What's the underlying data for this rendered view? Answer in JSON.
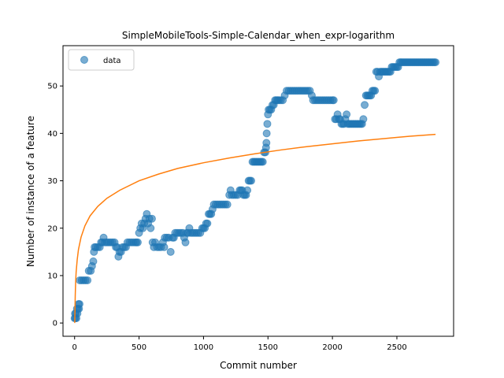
{
  "chart_data": {
    "type": "scatter",
    "title": "SimpleMobileTools-Simple-Calendar_when_expr-logarithm",
    "xlabel": "Commit number",
    "ylabel": "Number of instance of a feature",
    "xlim": [
      -90,
      2940
    ],
    "ylim": [
      -2.8,
      58.5
    ],
    "xticks": [
      0,
      500,
      1000,
      1500,
      2000,
      2500
    ],
    "yticks": [
      0,
      10,
      20,
      30,
      40,
      50
    ],
    "grid": false,
    "legend": {
      "placement": "top-left",
      "entries": [
        "data"
      ]
    },
    "series": [
      {
        "name": "data",
        "kind": "scatter",
        "color": "#1f77b4",
        "opacity": 0.6,
        "points": [
          [
            0,
            1
          ],
          [
            3,
            2
          ],
          [
            6,
            1
          ],
          [
            10,
            2
          ],
          [
            14,
            1
          ],
          [
            18,
            3
          ],
          [
            22,
            2
          ],
          [
            26,
            3
          ],
          [
            30,
            4
          ],
          [
            34,
            3
          ],
          [
            38,
            4
          ],
          [
            40,
            9
          ],
          [
            55,
            9
          ],
          [
            70,
            9
          ],
          [
            85,
            9
          ],
          [
            100,
            9
          ],
          [
            110,
            11
          ],
          [
            125,
            11
          ],
          [
            135,
            12
          ],
          [
            145,
            13
          ],
          [
            150,
            15
          ],
          [
            155,
            16
          ],
          [
            165,
            16
          ],
          [
            180,
            16
          ],
          [
            195,
            16
          ],
          [
            205,
            17
          ],
          [
            215,
            17
          ],
          [
            225,
            18
          ],
          [
            235,
            17
          ],
          [
            250,
            17
          ],
          [
            265,
            17
          ],
          [
            280,
            17
          ],
          [
            295,
            17
          ],
          [
            310,
            17
          ],
          [
            320,
            16
          ],
          [
            330,
            16
          ],
          [
            340,
            14
          ],
          [
            348,
            15
          ],
          [
            360,
            15
          ],
          [
            372,
            16
          ],
          [
            385,
            16
          ],
          [
            398,
            16
          ],
          [
            410,
            17
          ],
          [
            425,
            17
          ],
          [
            440,
            17
          ],
          [
            455,
            17
          ],
          [
            470,
            17
          ],
          [
            480,
            17
          ],
          [
            490,
            17
          ],
          [
            500,
            19
          ],
          [
            510,
            20
          ],
          [
            520,
            21
          ],
          [
            530,
            20
          ],
          [
            540,
            21
          ],
          [
            550,
            22
          ],
          [
            560,
            23
          ],
          [
            570,
            21
          ],
          [
            580,
            22
          ],
          [
            590,
            20
          ],
          [
            600,
            22
          ],
          [
            605,
            17
          ],
          [
            615,
            16
          ],
          [
            625,
            17
          ],
          [
            640,
            16
          ],
          [
            655,
            16
          ],
          [
            670,
            16
          ],
          [
            685,
            17
          ],
          [
            695,
            16
          ],
          [
            700,
            18
          ],
          [
            715,
            18
          ],
          [
            730,
            18
          ],
          [
            745,
            15
          ],
          [
            760,
            18
          ],
          [
            770,
            18
          ],
          [
            780,
            19
          ],
          [
            795,
            19
          ],
          [
            810,
            19
          ],
          [
            825,
            19
          ],
          [
            840,
            19
          ],
          [
            850,
            18
          ],
          [
            860,
            17
          ],
          [
            870,
            19
          ],
          [
            880,
            19
          ],
          [
            890,
            20
          ],
          [
            900,
            19
          ],
          [
            915,
            19
          ],
          [
            930,
            19
          ],
          [
            945,
            19
          ],
          [
            960,
            19
          ],
          [
            975,
            19
          ],
          [
            990,
            20
          ],
          [
            1000,
            20
          ],
          [
            1010,
            20
          ],
          [
            1020,
            21
          ],
          [
            1030,
            21
          ],
          [
            1040,
            23
          ],
          [
            1050,
            23
          ],
          [
            1060,
            23
          ],
          [
            1070,
            24
          ],
          [
            1080,
            25
          ],
          [
            1095,
            25
          ],
          [
            1110,
            25
          ],
          [
            1125,
            25
          ],
          [
            1140,
            25
          ],
          [
            1155,
            25
          ],
          [
            1170,
            25
          ],
          [
            1185,
            25
          ],
          [
            1200,
            27
          ],
          [
            1210,
            28
          ],
          [
            1220,
            27
          ],
          [
            1235,
            27
          ],
          [
            1250,
            27
          ],
          [
            1265,
            27
          ],
          [
            1280,
            28
          ],
          [
            1290,
            28
          ],
          [
            1300,
            28
          ],
          [
            1310,
            27
          ],
          [
            1320,
            27
          ],
          [
            1330,
            27
          ],
          [
            1340,
            28
          ],
          [
            1350,
            30
          ],
          [
            1360,
            30
          ],
          [
            1370,
            30
          ],
          [
            1380,
            34
          ],
          [
            1390,
            34
          ],
          [
            1400,
            34
          ],
          [
            1410,
            34
          ],
          [
            1420,
            34
          ],
          [
            1430,
            34
          ],
          [
            1440,
            34
          ],
          [
            1450,
            34
          ],
          [
            1460,
            34
          ],
          [
            1470,
            36
          ],
          [
            1480,
            36
          ],
          [
            1485,
            37
          ],
          [
            1488,
            38
          ],
          [
            1490,
            40
          ],
          [
            1495,
            42
          ],
          [
            1500,
            44
          ],
          [
            1505,
            45
          ],
          [
            1515,
            45
          ],
          [
            1525,
            45
          ],
          [
            1535,
            46
          ],
          [
            1545,
            46
          ],
          [
            1555,
            47
          ],
          [
            1565,
            47
          ],
          [
            1575,
            47
          ],
          [
            1585,
            47
          ],
          [
            1600,
            47
          ],
          [
            1615,
            47
          ],
          [
            1630,
            48
          ],
          [
            1645,
            49
          ],
          [
            1660,
            49
          ],
          [
            1675,
            49
          ],
          [
            1690,
            49
          ],
          [
            1705,
            49
          ],
          [
            1720,
            49
          ],
          [
            1735,
            49
          ],
          [
            1750,
            49
          ],
          [
            1765,
            49
          ],
          [
            1780,
            49
          ],
          [
            1795,
            49
          ],
          [
            1810,
            49
          ],
          [
            1825,
            49
          ],
          [
            1840,
            48
          ],
          [
            1850,
            47
          ],
          [
            1865,
            47
          ],
          [
            1880,
            47
          ],
          [
            1895,
            47
          ],
          [
            1910,
            47
          ],
          [
            1925,
            47
          ],
          [
            1940,
            47
          ],
          [
            1955,
            47
          ],
          [
            1970,
            47
          ],
          [
            1985,
            47
          ],
          [
            2000,
            47
          ],
          [
            2010,
            47
          ],
          [
            2020,
            43
          ],
          [
            2030,
            43
          ],
          [
            2040,
            44
          ],
          [
            2050,
            43
          ],
          [
            2060,
            43
          ],
          [
            2070,
            42
          ],
          [
            2080,
            42
          ],
          [
            2090,
            42
          ],
          [
            2100,
            43
          ],
          [
            2110,
            44
          ],
          [
            2120,
            42
          ],
          [
            2130,
            42
          ],
          [
            2140,
            42
          ],
          [
            2150,
            42
          ],
          [
            2160,
            42
          ],
          [
            2170,
            42
          ],
          [
            2180,
            42
          ],
          [
            2190,
            42
          ],
          [
            2200,
            42
          ],
          [
            2210,
            42
          ],
          [
            2220,
            42
          ],
          [
            2230,
            42
          ],
          [
            2240,
            43
          ],
          [
            2250,
            46
          ],
          [
            2260,
            48
          ],
          [
            2270,
            48
          ],
          [
            2280,
            48
          ],
          [
            2290,
            48
          ],
          [
            2300,
            48
          ],
          [
            2310,
            49
          ],
          [
            2320,
            49
          ],
          [
            2330,
            49
          ],
          [
            2340,
            53
          ],
          [
            2350,
            53
          ],
          [
            2360,
            52
          ],
          [
            2370,
            53
          ],
          [
            2380,
            53
          ],
          [
            2390,
            53
          ],
          [
            2400,
            53
          ],
          [
            2410,
            53
          ],
          [
            2420,
            53
          ],
          [
            2430,
            53
          ],
          [
            2440,
            53
          ],
          [
            2450,
            53
          ],
          [
            2460,
            54
          ],
          [
            2470,
            54
          ],
          [
            2480,
            54
          ],
          [
            2490,
            54
          ],
          [
            2500,
            54
          ],
          [
            2510,
            54
          ],
          [
            2520,
            55
          ],
          [
            2530,
            55
          ],
          [
            2540,
            55
          ],
          [
            2550,
            55
          ],
          [
            2560,
            55
          ],
          [
            2570,
            55
          ],
          [
            2580,
            55
          ],
          [
            2590,
            55
          ],
          [
            2600,
            55
          ],
          [
            2610,
            55
          ],
          [
            2620,
            55
          ],
          [
            2630,
            55
          ],
          [
            2640,
            55
          ],
          [
            2650,
            55
          ],
          [
            2660,
            55
          ],
          [
            2670,
            55
          ],
          [
            2680,
            55
          ],
          [
            2690,
            55
          ],
          [
            2700,
            55
          ],
          [
            2710,
            55
          ],
          [
            2720,
            55
          ],
          [
            2730,
            55
          ],
          [
            2740,
            55
          ],
          [
            2750,
            55
          ],
          [
            2760,
            55
          ],
          [
            2770,
            55
          ],
          [
            2780,
            55
          ],
          [
            2790,
            55
          ],
          [
            2800,
            55
          ]
        ]
      },
      {
        "kind": "line",
        "color": "#ff7f0e",
        "points": [
          [
            1,
            0
          ],
          [
            3,
            2.7
          ],
          [
            5,
            5.8
          ],
          [
            8,
            8.6
          ],
          [
            12,
            10.8
          ],
          [
            20,
            13.3
          ],
          [
            30,
            15.5
          ],
          [
            50,
            18.1
          ],
          [
            80,
            20.5
          ],
          [
            120,
            22.6
          ],
          [
            180,
            24.6
          ],
          [
            250,
            26.3
          ],
          [
            350,
            28.0
          ],
          [
            500,
            30.0
          ],
          [
            650,
            31.4
          ],
          [
            800,
            32.6
          ],
          [
            1000,
            33.8
          ],
          [
            1200,
            34.8
          ],
          [
            1400,
            35.7
          ],
          [
            1600,
            36.5
          ],
          [
            1800,
            37.2
          ],
          [
            2000,
            37.8
          ],
          [
            2200,
            38.4
          ],
          [
            2400,
            38.9
          ],
          [
            2600,
            39.4
          ],
          [
            2800,
            39.8
          ]
        ]
      }
    ]
  }
}
